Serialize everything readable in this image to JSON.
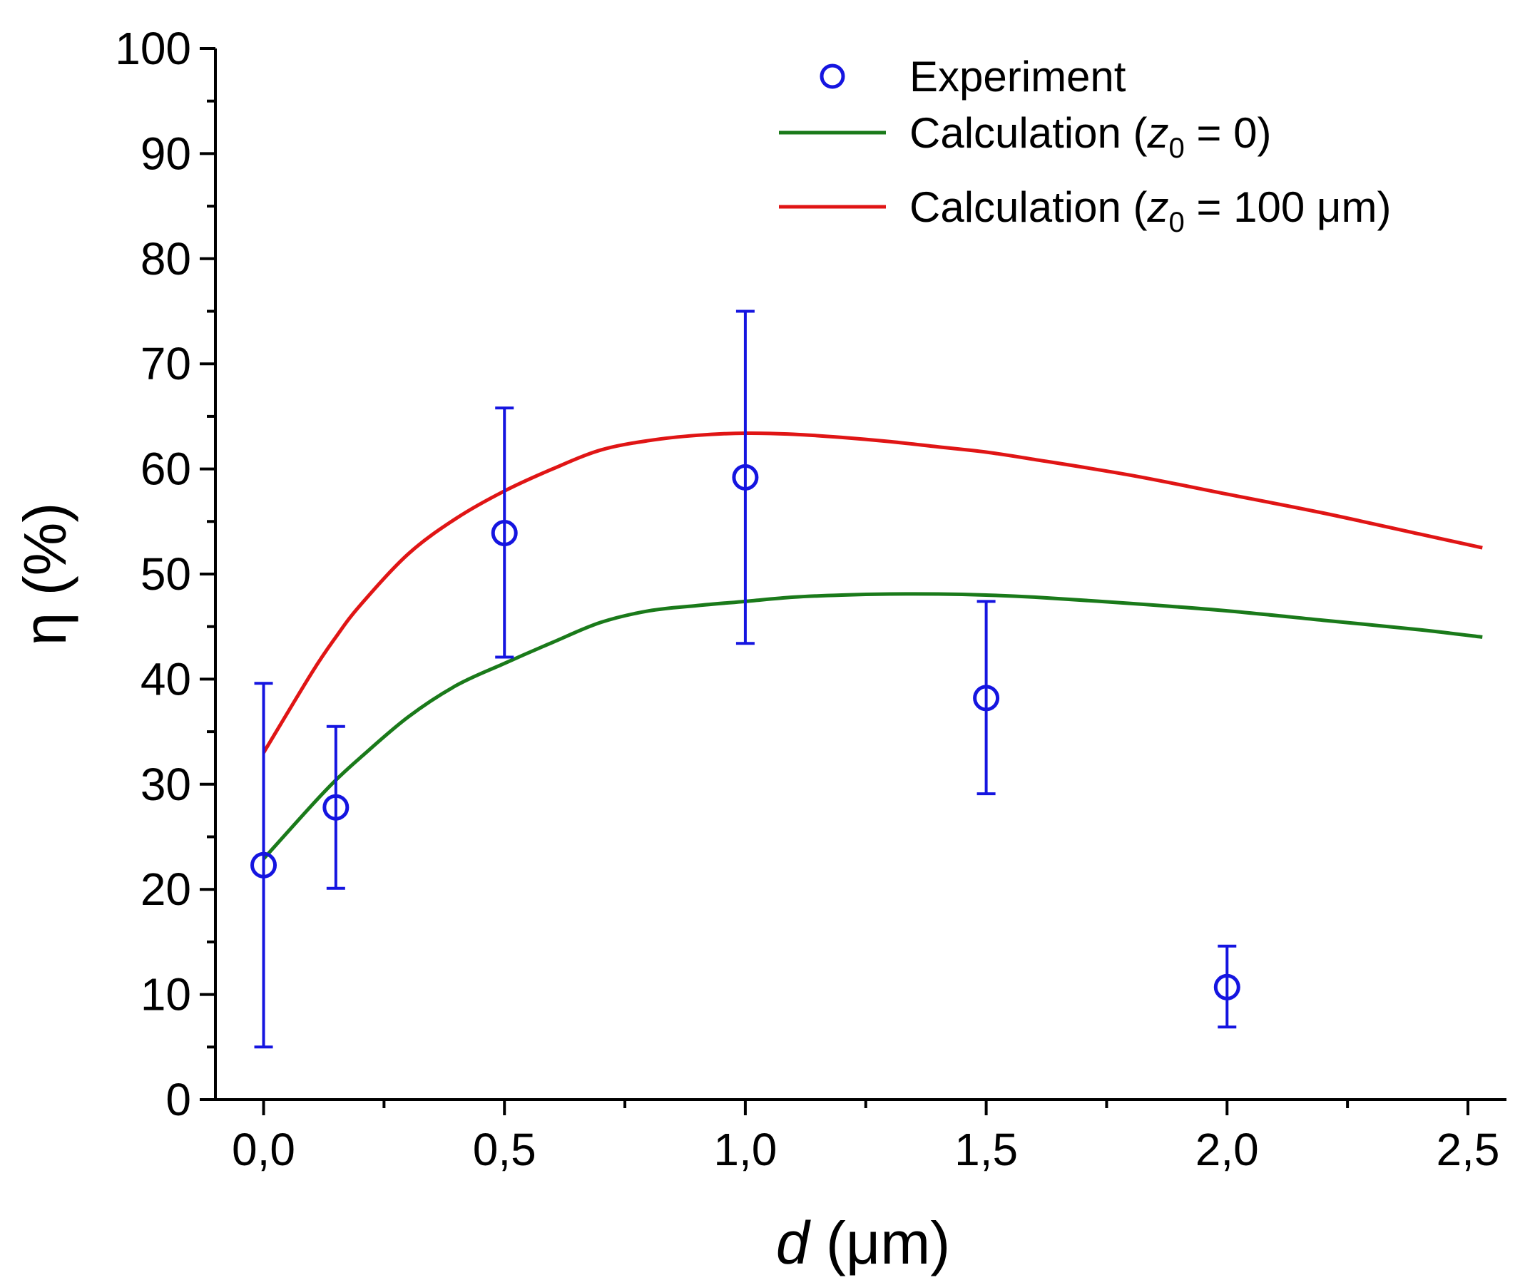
{
  "chart_data": {
    "type": "scatter",
    "title": "",
    "xlabel": {
      "symbol": "d",
      "unit": " (μm)"
    },
    "ylabel": "η (%)",
    "xlim": [
      -0.1,
      2.58
    ],
    "ylim": [
      0,
      100
    ],
    "x_ticks": [
      0.0,
      0.5,
      1.0,
      1.5,
      2.0,
      2.5
    ],
    "x_tick_labels": [
      "0,0",
      "0,5",
      "1,0",
      "1,5",
      "2,0",
      "2,5"
    ],
    "x_minor_ticks": [
      0.25,
      0.75,
      1.25,
      1.75,
      2.25
    ],
    "y_ticks": [
      0,
      10,
      20,
      30,
      40,
      50,
      60,
      70,
      80,
      90,
      100
    ],
    "y_tick_labels": [
      "0",
      "10",
      "20",
      "30",
      "40",
      "50",
      "60",
      "70",
      "80",
      "90",
      "100"
    ],
    "grid": false,
    "legend_position": "top-right",
    "series": [
      {
        "name": "Experiment",
        "kind": "scatter",
        "marker": "open-circle",
        "color": "#1515e0",
        "x": [
          0.0,
          0.15,
          0.5,
          1.0,
          1.5,
          2.0
        ],
        "y": [
          22.3,
          27.8,
          53.9,
          59.2,
          38.2,
          10.7
        ],
        "err_low": [
          5.0,
          20.1,
          42.1,
          43.4,
          29.1,
          6.9
        ],
        "err_high": [
          39.6,
          35.5,
          65.8,
          75.0,
          47.4,
          14.6
        ]
      },
      {
        "name": "Calculation (z0 = 0)",
        "label_parts": {
          "pre": "Calculation (",
          "var": "z",
          "sub": "0",
          "post": " = 0)"
        },
        "kind": "line",
        "color": "#1a7a1a",
        "x": [
          0.0,
          0.1,
          0.15,
          0.2,
          0.3,
          0.4,
          0.5,
          0.6,
          0.7,
          0.8,
          0.9,
          1.0,
          1.1,
          1.2,
          1.3,
          1.4,
          1.5,
          1.6,
          1.8,
          2.0,
          2.2,
          2.4,
          2.53
        ],
        "y": [
          22.9,
          28.0,
          30.4,
          32.5,
          36.4,
          39.4,
          41.5,
          43.5,
          45.4,
          46.5,
          47.0,
          47.4,
          47.8,
          48.0,
          48.1,
          48.1,
          48.0,
          47.8,
          47.2,
          46.5,
          45.6,
          44.7,
          44.0
        ]
      },
      {
        "name": "Calculation (z0 = 100 μm)",
        "label_parts": {
          "pre": "Calculation (",
          "var": "z",
          "sub": "0",
          "post": " = 100 μm)"
        },
        "kind": "line",
        "color": "#e01515",
        "x": [
          0.0,
          0.1,
          0.15,
          0.2,
          0.3,
          0.4,
          0.5,
          0.6,
          0.7,
          0.8,
          0.9,
          1.0,
          1.1,
          1.2,
          1.3,
          1.4,
          1.5,
          1.6,
          1.8,
          2.0,
          2.2,
          2.4,
          2.53
        ],
        "y": [
          33.0,
          40.6,
          44.0,
          47.0,
          51.9,
          55.3,
          57.9,
          60.0,
          61.8,
          62.7,
          63.2,
          63.4,
          63.3,
          63.0,
          62.6,
          62.1,
          61.6,
          60.9,
          59.4,
          57.6,
          55.8,
          53.8,
          52.5
        ]
      }
    ]
  }
}
